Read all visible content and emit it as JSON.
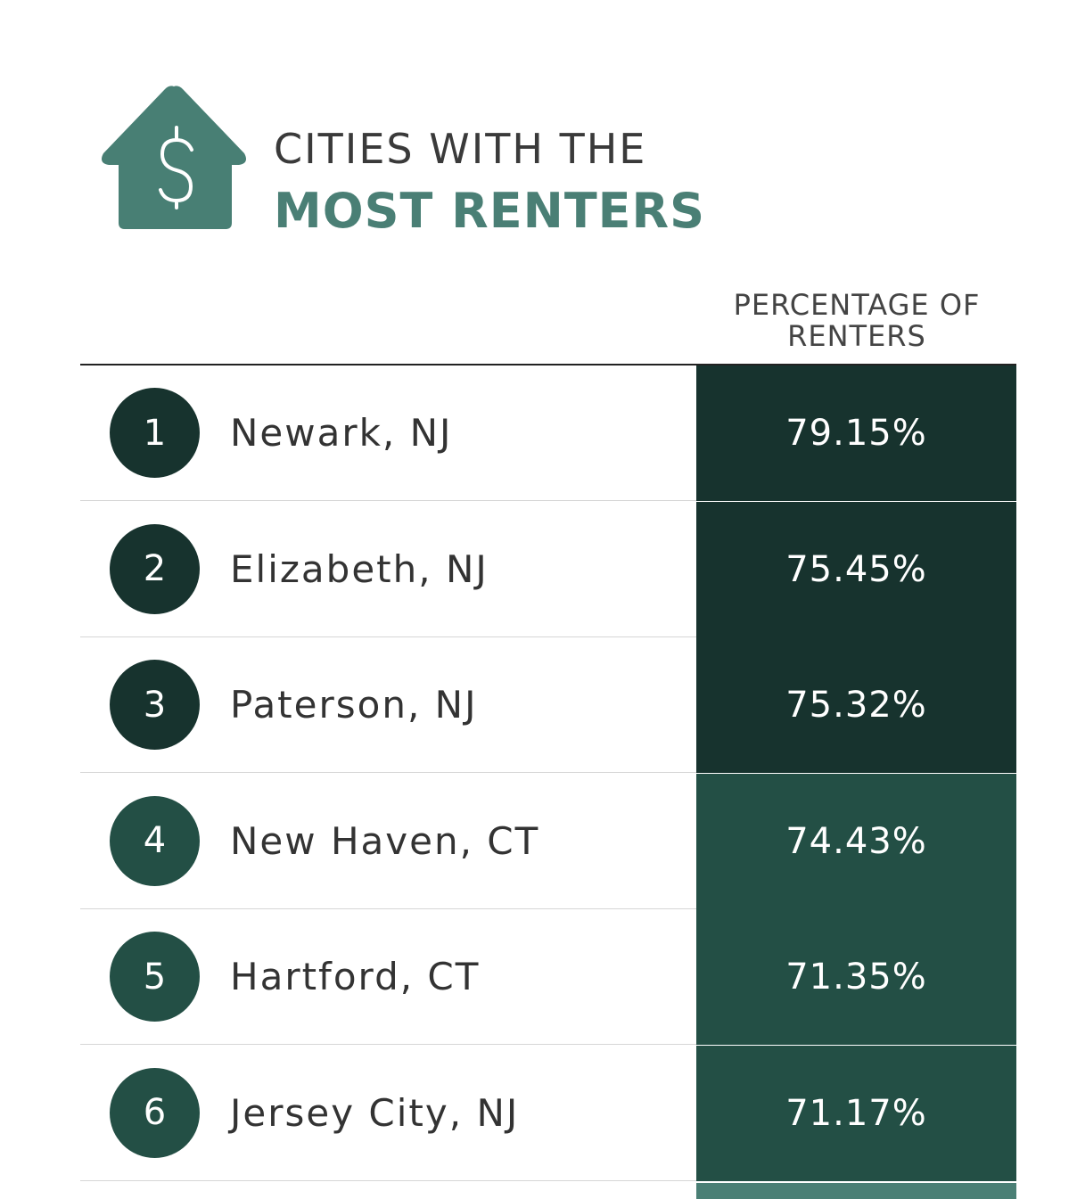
{
  "header": {
    "title_line1": "CITIES WITH THE",
    "title_line2": "MOST RENTERS"
  },
  "table": {
    "column_header": "PERCENTAGE OF RENTERS",
    "rows": [
      {
        "rank": 1,
        "city": "Newark, NJ",
        "percentage": "79.15%",
        "color": "#17332e"
      },
      {
        "rank": 2,
        "city": "Elizabeth, NJ",
        "percentage": "75.45%",
        "color": "#17332e"
      },
      {
        "rank": 3,
        "city": "Paterson, NJ",
        "percentage": "75.32%",
        "color": "#17332e"
      },
      {
        "rank": 4,
        "city": "New Haven, CT",
        "percentage": "74.43%",
        "color": "#234f45"
      },
      {
        "rank": 5,
        "city": "Hartford, CT",
        "percentage": "71.35%",
        "color": "#234f45"
      },
      {
        "rank": 6,
        "city": "Jersey City, NJ",
        "percentage": "71.17%",
        "color": "#234f45"
      }
    ]
  }
}
